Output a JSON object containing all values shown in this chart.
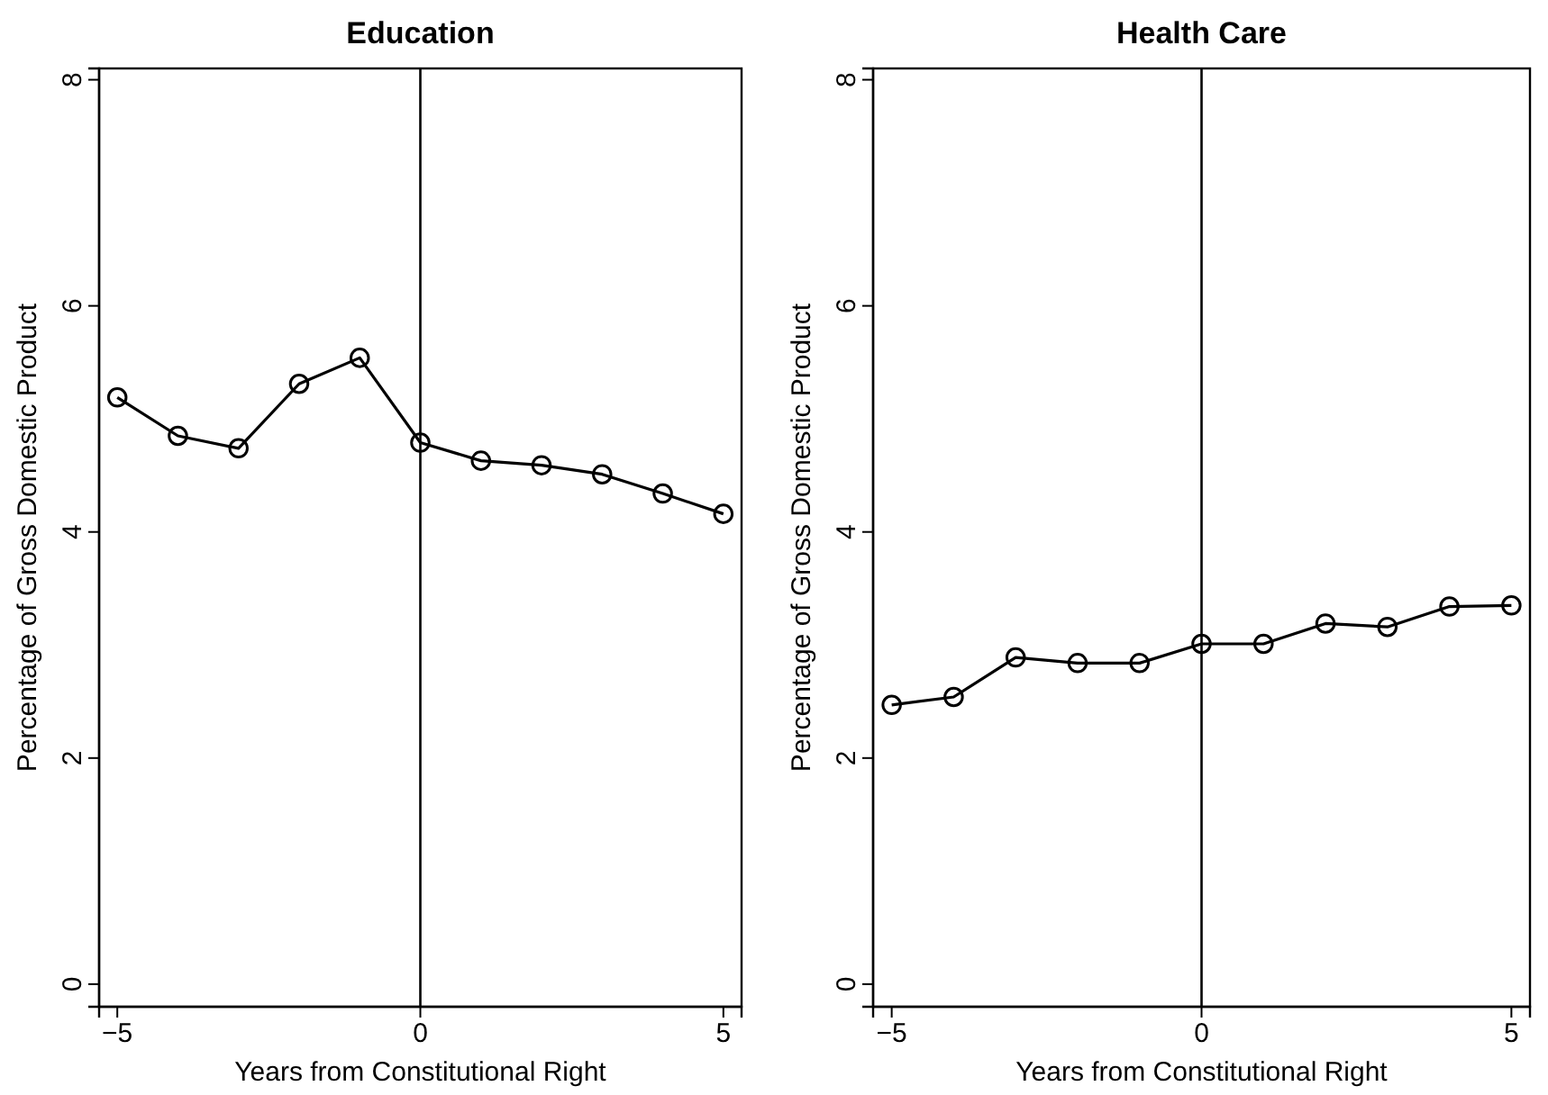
{
  "chart_data": [
    {
      "type": "line",
      "title": "Education",
      "xlabel": "Years from Constitutional Right",
      "ylabel": "Percentage of Gross Domestic Product",
      "x": [
        -5,
        -4,
        -3,
        -2,
        -1,
        0,
        1,
        2,
        3,
        4,
        5
      ],
      "series": [
        {
          "color": "#000000",
          "values": [
            5.19,
            4.85,
            4.74,
            5.31,
            5.54,
            4.79,
            4.63,
            4.59,
            4.51,
            4.34,
            4.16
          ]
        }
      ],
      "xlim": [
        -5.3,
        5.3
      ],
      "xticks": [
        -5,
        0,
        5
      ],
      "ylim": [
        -0.2,
        8.1
      ],
      "yticks": [
        0,
        2,
        4,
        6,
        8
      ],
      "ref_lines": [
        {
          "axis": "x",
          "value": 0,
          "color": "#000000"
        }
      ],
      "grid": false,
      "marker": "circle",
      "line_style": "solid"
    },
    {
      "type": "line",
      "title": "Health Care",
      "xlabel": "Years from Constitutional Right",
      "ylabel": "Percentage of Gross Domestic Product",
      "x": [
        -5,
        -4,
        -3,
        -2,
        -1,
        0,
        1,
        2,
        3,
        4,
        5
      ],
      "series": [
        {
          "color": "#000000",
          "values": [
            2.47,
            2.54,
            2.89,
            2.84,
            2.84,
            3.01,
            3.01,
            3.19,
            3.16,
            3.34,
            3.35
          ]
        }
      ],
      "xlim": [
        -5.3,
        5.3
      ],
      "xticks": [
        -5,
        0,
        5
      ],
      "ylim": [
        -0.2,
        8.1
      ],
      "yticks": [
        0,
        2,
        4,
        6,
        8
      ],
      "ref_lines": [
        {
          "axis": "x",
          "value": 0,
          "color": "#000000"
        }
      ],
      "grid": false,
      "marker": "circle",
      "line_style": "solid"
    }
  ]
}
